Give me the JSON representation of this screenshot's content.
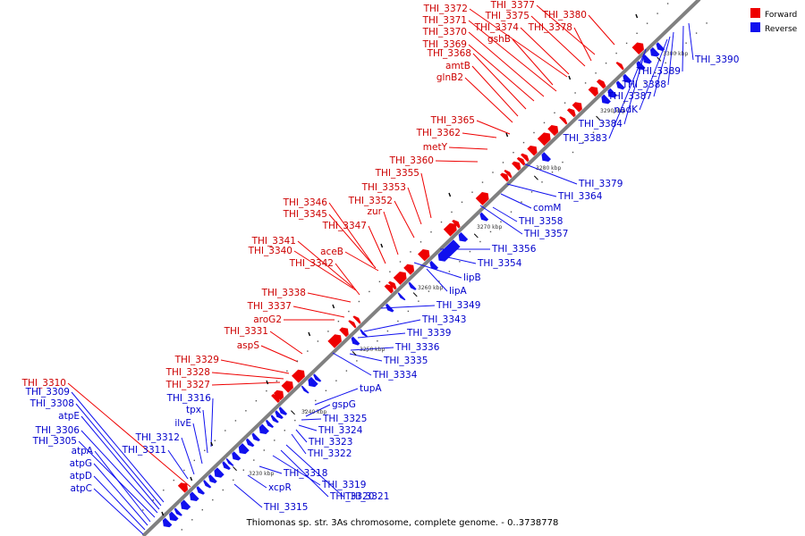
{
  "caption": "Thiomonas sp. str. 3As chromosome, complete genome. - 0..3738778",
  "legend": {
    "forward": "Forward",
    "reverse": "Reverse",
    "forward_color": "#ee0000",
    "reverse_color": "#1010ee"
  },
  "scale_labels": [
    "3230 kbp",
    "3240 kbp",
    "3250 kbp",
    "3260 kbp",
    "3270 kbp",
    "3280 kbp",
    "3290 kbp",
    "3300 kbp"
  ],
  "forward_labels": [
    "THI_3310",
    "THI_3327",
    "THI_3328",
    "THI_3329",
    "aspS",
    "THI_3331",
    "aroG2",
    "THI_3337",
    "THI_3338",
    "THI_3342",
    "THI_3340",
    "THI_3341",
    "aceB",
    "THI_3347",
    "THI_3345",
    "THI_3346",
    "zur",
    "THI_3352",
    "THI_3353",
    "THI_3355",
    "THI_3360",
    "metY",
    "THI_3362",
    "THI_3365",
    "glnB2",
    "amtB",
    "THI_3368",
    "THI_3369",
    "THI_3370",
    "gshB",
    "THI_3371",
    "THI_3374",
    "THI_3372",
    "THI_3375",
    "THI_3378",
    "THI_3377",
    "THI_3380"
  ],
  "reverse_labels": [
    "THI_3309",
    "THI_3308",
    "atpE",
    "THI_3306",
    "THI_3305",
    "atpA",
    "atpG",
    "atpD",
    "atpC",
    "THI_3312",
    "THI_3311",
    "ilvE",
    "tpx",
    "THI_3316",
    "THI_3315",
    "xcpR",
    "THI_3318",
    "THI_3319",
    "THI_3320",
    "THI_3321",
    "THI_3322",
    "THI_3323",
    "THI_3324",
    "THI_3325",
    "gspG",
    "tupA",
    "THI_3334",
    "THI_3335",
    "THI_3336",
    "THI_3339",
    "THI_3343",
    "THI_3349",
    "lipA",
    "lipB",
    "THI_3354",
    "THI_3356",
    "THI_3357",
    "THI_3358",
    "comM",
    "THI_3364",
    "THI_3379",
    "THI_3383",
    "THI_3384",
    "nadK",
    "THI_3387",
    "THI_3388",
    "THI_3389",
    "THI_3390"
  ]
}
